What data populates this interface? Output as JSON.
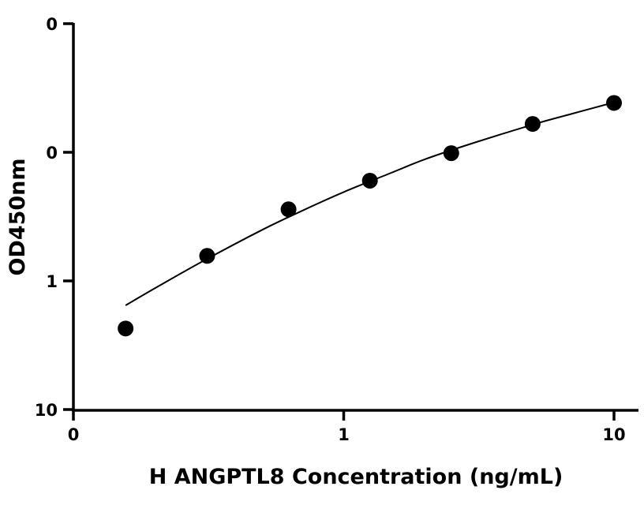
{
  "chart_data": {
    "type": "scatter",
    "xlabel": "H ANGPTL8 Concentration (ng/mL)",
    "ylabel": "OD450nm",
    "x_scale": "log",
    "y_scale": "log",
    "xlim": [
      0.1,
      10
    ],
    "ylim": [
      0.01,
      10
    ],
    "x_ticks": [
      {
        "value": 0.1,
        "label": "0"
      },
      {
        "value": 1,
        "label": "1"
      },
      {
        "value": 10,
        "label": "10"
      }
    ],
    "y_ticks": [
      {
        "value": 0.01,
        "label": "0"
      },
      {
        "value": 0.1,
        "label": "0"
      },
      {
        "value": 1,
        "label": "1"
      },
      {
        "value": 10,
        "label": "10"
      }
    ],
    "grid": false,
    "legend": "none",
    "marker_color": "#000000",
    "series": [
      {
        "x": [
          0.156,
          0.3125,
          0.625,
          1.25,
          2.5,
          5,
          10
        ],
        "y": [
          0.043,
          0.157,
          0.36,
          0.6,
          0.98,
          1.65,
          2.4
        ]
      }
    ],
    "fit_curve": {
      "x": [
        0.156,
        0.2,
        0.3,
        0.5,
        0.7,
        1.0,
        1.5,
        2.0,
        3.0,
        5.0,
        7.0,
        10.0
      ],
      "y": [
        0.065,
        0.088,
        0.142,
        0.25,
        0.35,
        0.49,
        0.69,
        0.88,
        1.17,
        1.63,
        1.98,
        2.42
      ]
    }
  }
}
